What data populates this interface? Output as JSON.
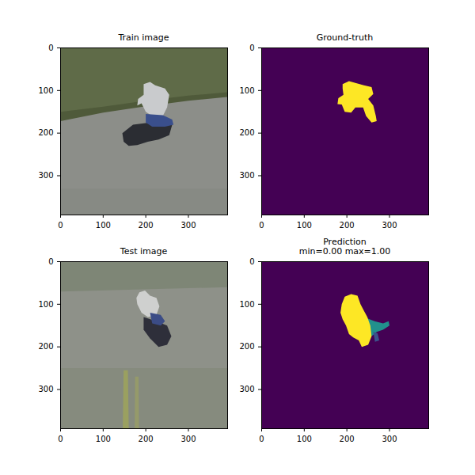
{
  "chart_data": [
    {
      "type": "image",
      "title": "Train image",
      "xlim": [
        0,
        392
      ],
      "ylim": [
        392,
        0
      ],
      "xticks": [
        0,
        100,
        200,
        300
      ],
      "yticks": [
        0,
        100,
        200,
        300
      ],
      "regions": [
        {
          "color": "#8c8e89",
          "points": [
            [
              0,
              0
            ],
            [
              392,
              0
            ],
            [
              392,
              392
            ],
            [
              0,
              392
            ]
          ]
        },
        {
          "color": "#5f6b48",
          "points": [
            [
              0,
              0
            ],
            [
              392,
              0
            ],
            [
              392,
              110
            ],
            [
              300,
              120
            ],
            [
              200,
              135
            ],
            [
              100,
              150
            ],
            [
              0,
              165
            ]
          ]
        },
        {
          "color": "#4f5a3a",
          "points": [
            [
              0,
              150
            ],
            [
              100,
              138
            ],
            [
              200,
              124
            ],
            [
              300,
              112
            ],
            [
              392,
              104
            ],
            [
              392,
              115
            ],
            [
              300,
              124
            ],
            [
              200,
              137
            ],
            [
              100,
              152
            ],
            [
              0,
              172
            ]
          ]
        },
        {
          "color": "#878a84",
          "points": [
            [
              0,
              330
            ],
            [
              392,
              330
            ],
            [
              392,
              392
            ],
            [
              0,
              392
            ]
          ]
        },
        {
          "color": "#2b2d33",
          "points": [
            [
              145,
              200
            ],
            [
              170,
              180
            ],
            [
              210,
              175
            ],
            [
              250,
              170
            ],
            [
              262,
              180
            ],
            [
              255,
              205
            ],
            [
              230,
              215
            ],
            [
              205,
              220
            ],
            [
              180,
              228
            ],
            [
              160,
              230
            ],
            [
              148,
              220
            ]
          ]
        },
        {
          "color": "#c9cbcd",
          "points": [
            [
              195,
              85
            ],
            [
              210,
              80
            ],
            [
              222,
              88
            ],
            [
              245,
              95
            ],
            [
              255,
              110
            ],
            [
              250,
              140
            ],
            [
              240,
              160
            ],
            [
              215,
              160
            ],
            [
              200,
              150
            ],
            [
              190,
              130
            ],
            [
              180,
              135
            ],
            [
              182,
              120
            ],
            [
              195,
              110
            ]
          ]
        },
        {
          "color": "#3a4f8c",
          "points": [
            [
              200,
              155
            ],
            [
              240,
              158
            ],
            [
              262,
              168
            ],
            [
              265,
              180
            ],
            [
              245,
              185
            ],
            [
              215,
              185
            ],
            [
              200,
              175
            ]
          ]
        }
      ]
    },
    {
      "type": "image",
      "title": "Ground-truth",
      "xlim": [
        0,
        392
      ],
      "ylim": [
        392,
        0
      ],
      "xticks": [
        0,
        100,
        200,
        300
      ],
      "yticks": [
        0,
        100,
        200,
        300
      ],
      "regions": [
        {
          "color": "#440154",
          "points": [
            [
              0,
              0
            ],
            [
              392,
              0
            ],
            [
              392,
              392
            ],
            [
              0,
              392
            ]
          ]
        },
        {
          "color": "#fde725",
          "points": [
            [
              190,
              85
            ],
            [
              205,
              78
            ],
            [
              220,
              82
            ],
            [
              240,
              88
            ],
            [
              258,
              92
            ],
            [
              262,
              108
            ],
            [
              250,
              120
            ],
            [
              262,
              135
            ],
            [
              268,
              160
            ],
            [
              270,
              172
            ],
            [
              258,
              175
            ],
            [
              245,
              160
            ],
            [
              238,
              140
            ],
            [
              220,
              140
            ],
            [
              210,
              152
            ],
            [
              195,
              150
            ],
            [
              188,
              133
            ],
            [
              178,
              132
            ],
            [
              180,
              118
            ],
            [
              192,
              110
            ],
            [
              190,
              95
            ]
          ]
        }
      ]
    },
    {
      "type": "image",
      "title": "Test image",
      "xlim": [
        0,
        392
      ],
      "ylim": [
        392,
        0
      ],
      "xticks": [
        0,
        100,
        200,
        300
      ],
      "yticks": [
        0,
        100,
        200,
        300
      ],
      "regions": [
        {
          "color": "#8e9189",
          "points": [
            [
              0,
              0
            ],
            [
              392,
              0
            ],
            [
              392,
              392
            ],
            [
              0,
              392
            ]
          ]
        },
        {
          "color": "#7e8676",
          "points": [
            [
              0,
              0
            ],
            [
              392,
              0
            ],
            [
              392,
              60
            ],
            [
              0,
              70
            ]
          ]
        },
        {
          "color": "#868b7e",
          "points": [
            [
              0,
              250
            ],
            [
              392,
              250
            ],
            [
              392,
              392
            ],
            [
              0,
              392
            ]
          ]
        },
        {
          "color": "#9aa060",
          "points": [
            [
              148,
              255
            ],
            [
              158,
              255
            ],
            [
              160,
              392
            ],
            [
              146,
              392
            ]
          ]
        },
        {
          "color": "#959a6a",
          "points": [
            [
              175,
              270
            ],
            [
              183,
              270
            ],
            [
              184,
              392
            ],
            [
              174,
              392
            ]
          ]
        },
        {
          "color": "#2e2f3a",
          "points": [
            [
              195,
              130
            ],
            [
              225,
              140
            ],
            [
              250,
              150
            ],
            [
              260,
              175
            ],
            [
              250,
              195
            ],
            [
              230,
              200
            ],
            [
              210,
              180
            ],
            [
              195,
              160
            ]
          ]
        },
        {
          "color": "#cfd0cf",
          "points": [
            [
              185,
              72
            ],
            [
              198,
              68
            ],
            [
              210,
              80
            ],
            [
              225,
              85
            ],
            [
              232,
              105
            ],
            [
              225,
              125
            ],
            [
              205,
              130
            ],
            [
              190,
              120
            ],
            [
              180,
              100
            ],
            [
              178,
              85
            ]
          ]
        },
        {
          "color": "#3b4c86",
          "points": [
            [
              210,
              120
            ],
            [
              235,
              125
            ],
            [
              245,
              140
            ],
            [
              235,
              150
            ],
            [
              215,
              145
            ]
          ]
        }
      ]
    },
    {
      "type": "image",
      "title": "Prediction",
      "subtitle": "min=0.00 max=1.00",
      "xlim": [
        0,
        392
      ],
      "ylim": [
        392,
        0
      ],
      "xticks": [
        0,
        100,
        200,
        300
      ],
      "yticks": [
        0,
        100,
        200,
        300
      ],
      "regions": [
        {
          "color": "#440154",
          "points": [
            [
              0,
              0
            ],
            [
              392,
              0
            ],
            [
              392,
              392
            ],
            [
              0,
              392
            ]
          ]
        },
        {
          "color": "#21908d",
          "points": [
            [
              240,
              130
            ],
            [
              265,
              140
            ],
            [
              285,
              145
            ],
            [
              298,
              140
            ],
            [
              300,
              150
            ],
            [
              285,
              160
            ],
            [
              270,
              165
            ],
            [
              258,
              175
            ],
            [
              248,
              150
            ]
          ]
        },
        {
          "color": "#3b528b",
          "points": [
            [
              262,
              165
            ],
            [
              272,
              168
            ],
            [
              276,
              185
            ],
            [
              266,
              188
            ]
          ]
        },
        {
          "color": "#fde725",
          "points": [
            [
              195,
              82
            ],
            [
              210,
              76
            ],
            [
              225,
              80
            ],
            [
              232,
              100
            ],
            [
              240,
              115
            ],
            [
              248,
              130
            ],
            [
              255,
              150
            ],
            [
              258,
              175
            ],
            [
              250,
              195
            ],
            [
              235,
              200
            ],
            [
              228,
              185
            ],
            [
              215,
              178
            ],
            [
              205,
              170
            ],
            [
              198,
              150
            ],
            [
              190,
              135
            ],
            [
              185,
              120
            ],
            [
              188,
              100
            ]
          ]
        }
      ]
    }
  ]
}
